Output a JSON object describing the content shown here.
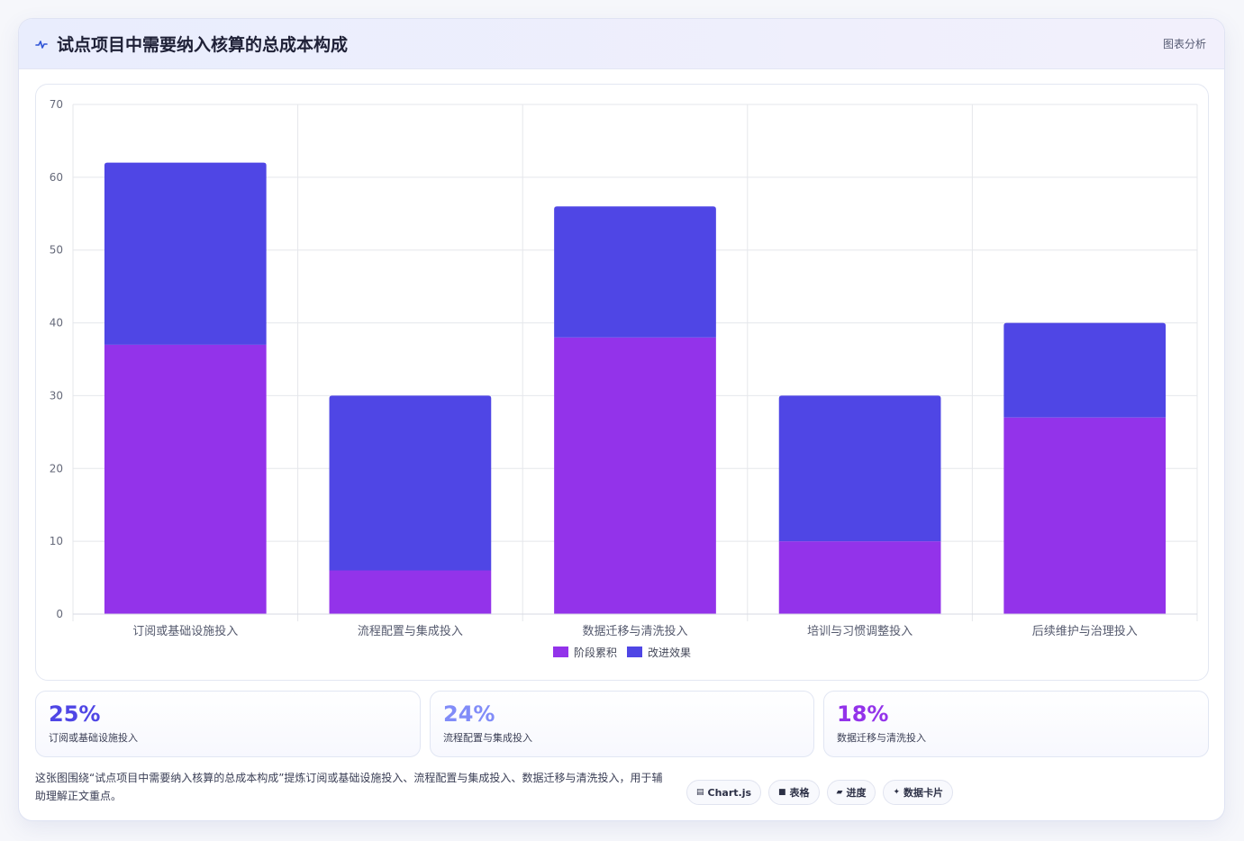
{
  "header": {
    "icon": "pulse-icon",
    "title": "试点项目中需要纳入核算的总成本构成",
    "tag": "图表分析"
  },
  "chart_data": {
    "type": "bar",
    "stacked": true,
    "categories": [
      "订阅或基础设施投入",
      "流程配置与集成投入",
      "数据迁移与清洗投入",
      "培训与习惯调整投入",
      "后续维护与治理投入"
    ],
    "series": [
      {
        "name": "阶段累积",
        "color": "#9333ea",
        "values": [
          37,
          6,
          38,
          10,
          27
        ]
      },
      {
        "name": "改进效果",
        "color": "#4f46e5",
        "values": [
          25,
          24,
          18,
          20,
          13
        ]
      }
    ],
    "ylim": [
      0,
      70
    ],
    "yticks": [
      0,
      10,
      20,
      30,
      40,
      50,
      60,
      70
    ],
    "grid": true,
    "legend": "bottom"
  },
  "stats": [
    {
      "value": "25%",
      "label": "订阅或基础设施投入",
      "color": "#4f46e5"
    },
    {
      "value": "24%",
      "label": "流程配置与集成投入",
      "color": "#818cf8"
    },
    {
      "value": "18%",
      "label": "数据迁移与清洗投入",
      "color": "#9333ea"
    }
  ],
  "description": "这张图围绕“试点项目中需要纳入核算的总成本构成”提炼订阅或基础设施投入、流程配置与集成投入、数据迁移与清洗投入，用于辅助理解正文重点。",
  "badges": [
    {
      "icon": "chart-icon",
      "glyph": "▤",
      "label": "Chart.js"
    },
    {
      "icon": "table-icon",
      "glyph": "■",
      "label": "表格"
    },
    {
      "icon": "progress-icon",
      "glyph": "▰",
      "label": "进度"
    },
    {
      "icon": "sparkle-icon",
      "glyph": "✦",
      "label": "数据卡片"
    }
  ]
}
